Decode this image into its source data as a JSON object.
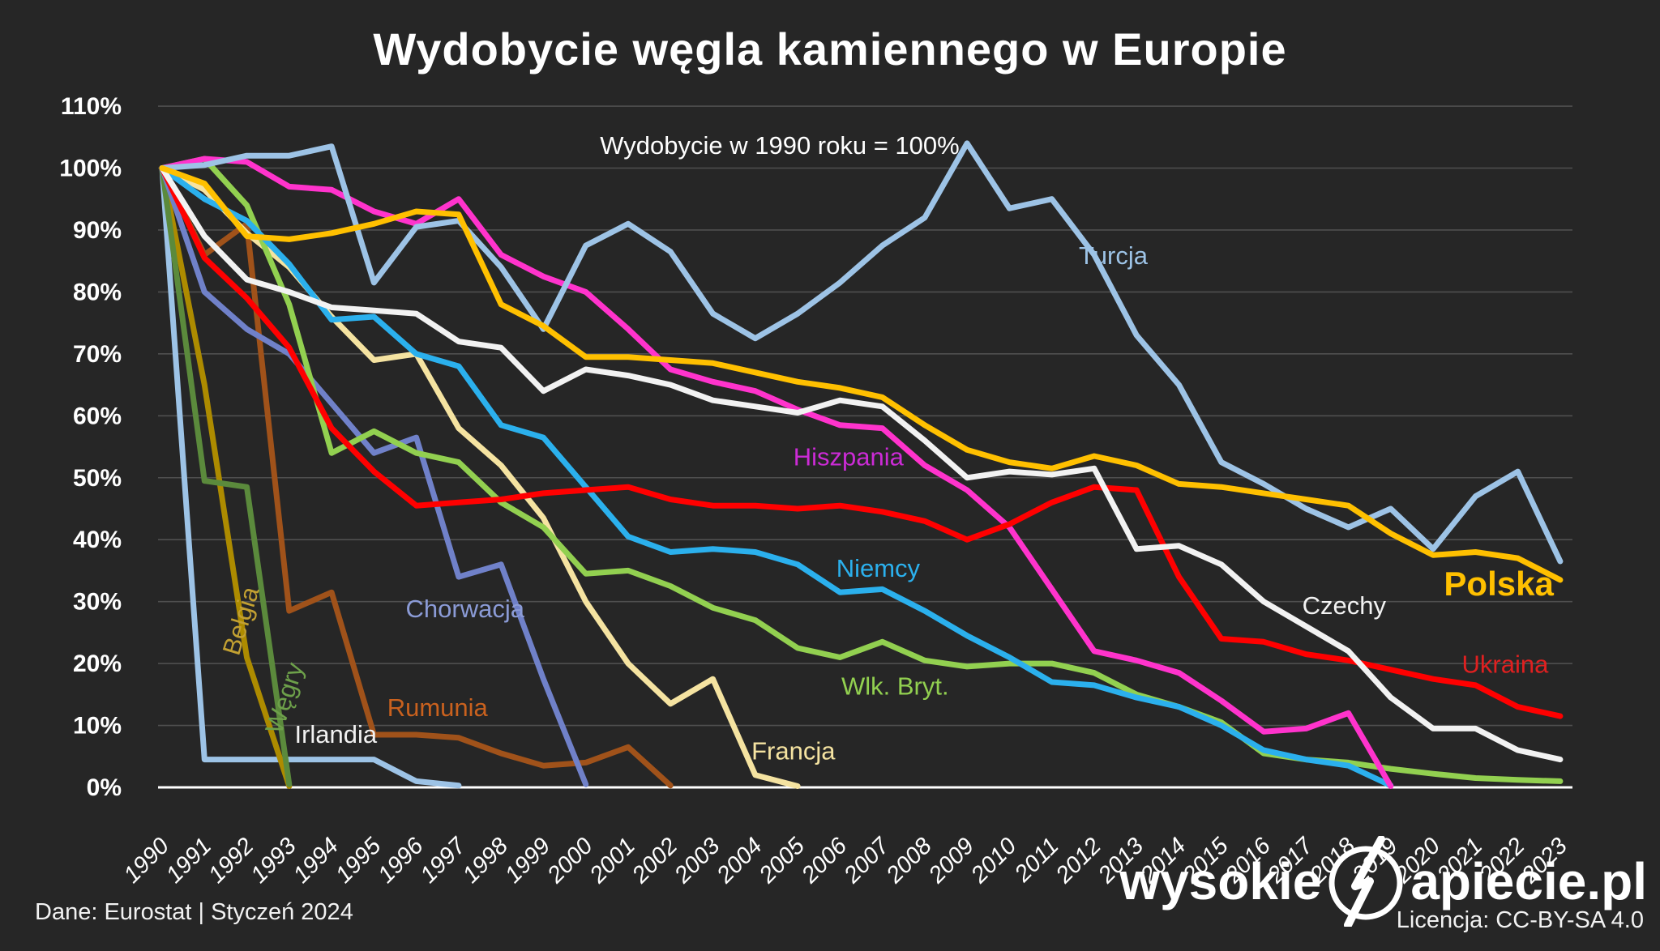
{
  "title": "Wydobycie węgla kamiennego w Europie",
  "subtitle": "Wydobycie w 1990 roku = 100%",
  "footer": {
    "source": "Dane: Eurostat  |  Styczeń 2024",
    "license": "Licencja: CC-BY-SA 4.0"
  },
  "logo": {
    "part1": "wysokie",
    "part2": "apiecie.pl"
  },
  "colors": {
    "background": "#262626",
    "grid": "#4f4f4f",
    "axis": "#ffffff",
    "text": "#ffffff"
  },
  "chart_data": {
    "type": "line",
    "title": "Wydobycie węgla kamiennego w Europie",
    "subtitle": "Wydobycie w 1990 roku = 100%",
    "x": [
      1990,
      1991,
      1992,
      1993,
      1994,
      1995,
      1996,
      1997,
      1998,
      1999,
      2000,
      2001,
      2002,
      2003,
      2004,
      2005,
      2006,
      2007,
      2008,
      2009,
      2010,
      2011,
      2012,
      2013,
      2014,
      2015,
      2016,
      2017,
      2018,
      2019,
      2020,
      2021,
      2022,
      2023
    ],
    "ylim": [
      0,
      110
    ],
    "ytick_step": 10,
    "ytick_suffix": "%",
    "grid": true,
    "legend_position": "inline-labels",
    "series": [
      {
        "name": "Irlandia",
        "color": "#9dc3e6",
        "label_color": "#f2f2f2",
        "label": {
          "x": 1994.1,
          "y": 7.2
        },
        "values": [
          100,
          4.5,
          4.5,
          4.5,
          4.5,
          4.5,
          1,
          0.3,
          null,
          null,
          null,
          null,
          null,
          null,
          null,
          null,
          null,
          null,
          null,
          null,
          null,
          null,
          null,
          null,
          null,
          null,
          null,
          null,
          null,
          null,
          null,
          null,
          null,
          null
        ]
      },
      {
        "name": "Belgia",
        "color": "#ad8b00",
        "label_color": "#c2a032",
        "label": {
          "x": 1992.05,
          "y": 26.5,
          "rotate": -73
        },
        "values": [
          100,
          65,
          21,
          0.2,
          null,
          null,
          null,
          null,
          null,
          null,
          null,
          null,
          null,
          null,
          null,
          null,
          null,
          null,
          null,
          null,
          null,
          null,
          null,
          null,
          null,
          null,
          null,
          null,
          null,
          null,
          null,
          null,
          null,
          null
        ]
      },
      {
        "name": "Węgry",
        "color": "#5b8a3c",
        "label_color": "#6da04a",
        "label": {
          "x": 1993.08,
          "y": 14,
          "rotate": -72
        },
        "values": [
          100,
          49.5,
          48.5,
          0.5,
          null,
          null,
          null,
          null,
          null,
          null,
          null,
          null,
          null,
          null,
          null,
          null,
          null,
          null,
          null,
          null,
          null,
          null,
          null,
          null,
          null,
          null,
          null,
          null,
          null,
          null,
          null,
          null,
          null,
          null
        ]
      },
      {
        "name": "Rumunia",
        "color": "#a0521a",
        "label_color": "#c9611e",
        "label": {
          "x": 1996.5,
          "y": 11.5
        },
        "values": [
          100,
          86,
          91,
          28.5,
          31.5,
          8.5,
          8.5,
          8,
          5.5,
          3.5,
          4,
          6.5,
          0.3,
          null,
          null,
          null,
          null,
          null,
          null,
          null,
          null,
          null,
          null,
          null,
          null,
          null,
          null,
          null,
          null,
          null,
          null,
          null,
          null,
          null
        ]
      },
      {
        "name": "Chorwacja",
        "color": "#7081c9",
        "label_color": "#8b9bd6",
        "label": {
          "x": 1997.15,
          "y": 27.5
        },
        "values": [
          100,
          80,
          74,
          70,
          62,
          54,
          56.5,
          34,
          36,
          17.5,
          0.5,
          null,
          null,
          null,
          null,
          null,
          null,
          null,
          null,
          null,
          null,
          null,
          null,
          null,
          null,
          null,
          null,
          null,
          null,
          null,
          null,
          null,
          null,
          null
        ]
      },
      {
        "name": "Francja",
        "color": "#f5e3a1",
        "label_color": "#f5e3a1",
        "label": {
          "x": 2004.9,
          "y": 4.5
        },
        "values": [
          100,
          96.5,
          89.5,
          84,
          76,
          69,
          70,
          58,
          52,
          43.5,
          30,
          20,
          13.5,
          17.5,
          2,
          0.2,
          null,
          null,
          null,
          null,
          null,
          null,
          null,
          null,
          null,
          null,
          null,
          null,
          null,
          null,
          null,
          null,
          null,
          null
        ]
      },
      {
        "name": "Wlk. Bryt.",
        "color": "#92d050",
        "label_color": "#92d050",
        "label": {
          "x": 2007.3,
          "y": 15
        },
        "values": [
          100,
          101.5,
          94,
          78,
          54,
          57.5,
          54,
          52.5,
          46,
          42,
          34.5,
          35,
          32.5,
          29,
          27,
          22.5,
          21,
          23.5,
          20.5,
          19.5,
          20,
          20,
          18.5,
          15,
          13,
          10.5,
          5.5,
          4.5,
          4,
          3,
          2.2,
          1.5,
          1.2,
          1
        ]
      },
      {
        "name": "Niemcy",
        "color": "#2bb0ed",
        "label_color": "#2bb0ed",
        "label": {
          "x": 2006.9,
          "y": 34
        },
        "values": [
          100,
          95,
          91.5,
          84.5,
          75.5,
          76,
          70,
          68,
          58.5,
          56.5,
          48.5,
          40.5,
          38,
          38.5,
          38,
          36,
          31.5,
          32,
          28.5,
          24.5,
          21,
          17,
          16.5,
          14.5,
          13,
          10,
          6,
          4.5,
          3.5,
          0.3,
          null,
          null,
          null,
          null
        ]
      },
      {
        "name": "Hiszpania",
        "color": "#ff33cc",
        "label_color": "#cc2bd6",
        "label": {
          "x": 2006.2,
          "y": 52
        },
        "values": [
          100,
          101.5,
          101,
          97,
          96.5,
          93,
          91,
          95,
          86,
          82.5,
          80,
          74,
          67.5,
          65.5,
          64,
          61,
          58.5,
          58,
          52,
          48,
          42,
          32,
          22,
          20.5,
          18.5,
          14,
          9,
          9.5,
          12,
          0.2,
          null,
          null,
          null,
          null
        ]
      },
      {
        "name": "Ukraina",
        "color": "#ff0000",
        "label_color": "#e02020",
        "label": {
          "x": 2021.7,
          "y": 18.5
        },
        "values": [
          100,
          85.5,
          79,
          71,
          58,
          51,
          45.5,
          46,
          46.5,
          47.5,
          48,
          48.5,
          46.5,
          45.5,
          45.5,
          45,
          45.5,
          44.5,
          43,
          40,
          42.5,
          46,
          48.5,
          48,
          34,
          24,
          23.5,
          21.5,
          20.5,
          19,
          17.5,
          16.5,
          13,
          11.5
        ]
      },
      {
        "name": "Turcja",
        "color": "#9dc3e6",
        "label_color": "#9dc3e6",
        "label": {
          "x": 2012.45,
          "y": 84.5
        },
        "values": [
          100,
          100.5,
          102,
          102,
          103.5,
          81.5,
          90.5,
          91.5,
          84,
          74,
          87.5,
          91,
          86.5,
          76.5,
          72.5,
          76.5,
          81.5,
          87.5,
          92,
          104,
          93.5,
          95,
          86,
          73,
          65,
          52.5,
          49,
          45,
          42,
          45,
          38.5,
          47,
          51,
          36.5
        ]
      },
      {
        "name": "Czechy",
        "color": "#f2f2f2",
        "label_color": "#f2f2f2",
        "label": {
          "x": 2017.9,
          "y": 28
        },
        "values": [
          100,
          89,
          82,
          80,
          77.5,
          77,
          76.5,
          72,
          71,
          64,
          67.5,
          66.5,
          65,
          62.5,
          61.5,
          60.5,
          62.5,
          61.5,
          56,
          50,
          51,
          50.5,
          51.5,
          38.5,
          39,
          36,
          30,
          26,
          22,
          14.5,
          9.5,
          9.5,
          6,
          4.5
        ]
      },
      {
        "name": "Polska",
        "color": "#ffc000",
        "label_color": "#ffc000",
        "label": {
          "x": 2021.55,
          "y": 31,
          "bold": true,
          "size": 42
        },
        "values": [
          100,
          97.5,
          89,
          88.5,
          89.5,
          91,
          93,
          92.5,
          78,
          74.5,
          69.5,
          69.5,
          69,
          68.5,
          67,
          65.5,
          64.5,
          63,
          58.5,
          54.5,
          52.5,
          51.5,
          53.5,
          52,
          49,
          48.5,
          47.5,
          46.5,
          45.5,
          41,
          37.5,
          38,
          37,
          33.5
        ]
      }
    ]
  }
}
